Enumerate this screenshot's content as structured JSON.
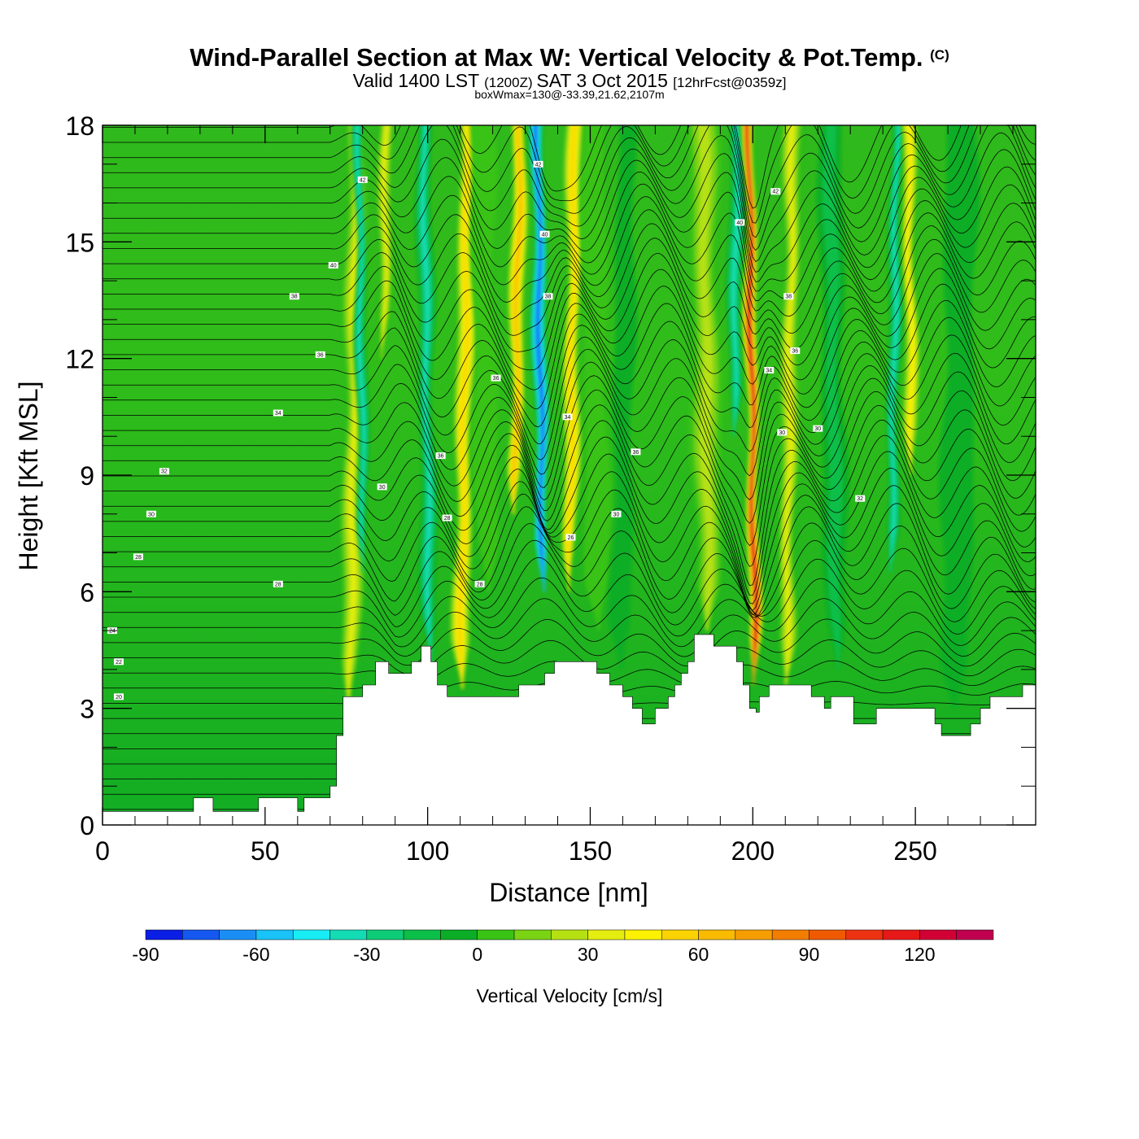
{
  "chart_data": {
    "type": "heatmap",
    "title": "Wind-Parallel Section at Max W: Vertical Velocity & Pot.Temp.",
    "title_suffix": "(C)",
    "subtitle": {
      "valid_prefix": "Valid 1400 LST",
      "utc": "(1200Z)",
      "date": "SAT 3 Oct 2015",
      "forecast": "[12hrFcst@0359z]"
    },
    "box_info": "boxWmax=130@-33.39,21.62,2107m",
    "xlabel": "Distance [nm]",
    "ylabel": "Height [Kft MSL]",
    "xlim": [
      0,
      287
    ],
    "ylim": [
      0,
      18
    ],
    "x_ticks": [
      0,
      50,
      100,
      150,
      200,
      250
    ],
    "y_ticks": [
      0,
      3,
      6,
      9,
      12,
      15,
      18
    ],
    "colorbar": {
      "label": "Vertical Velocity [cm/s]",
      "levels": [
        -90,
        -80,
        -70,
        -60,
        -50,
        -40,
        -30,
        -20,
        -10,
        0,
        10,
        20,
        30,
        40,
        50,
        60,
        70,
        80,
        90,
        100,
        110,
        120,
        130,
        140
      ],
      "tick_values": [
        -90,
        -60,
        -30,
        0,
        30,
        60,
        90,
        120
      ],
      "colors": [
        "#0a1ee6",
        "#1458f0",
        "#1a8ef5",
        "#19c2f7",
        "#18ecf5",
        "#13dcb5",
        "#0dcc78",
        "#0bbf48",
        "#0aad25",
        "#39c315",
        "#7ad313",
        "#b5e112",
        "#e4ed0f",
        "#fcf100",
        "#fbd300",
        "#f9ba00",
        "#f69e00",
        "#f37d00",
        "#ef5a00",
        "#ec3210",
        "#e61818",
        "#d10035",
        "#c1004f"
      ]
    },
    "terrain_kft": [
      [
        0,
        0.35
      ],
      [
        28,
        0.35
      ],
      [
        28,
        0.7
      ],
      [
        34,
        0.7
      ],
      [
        34,
        0.35
      ],
      [
        48,
        0.35
      ],
      [
        48,
        0.7
      ],
      [
        60,
        0.7
      ],
      [
        60,
        0.35
      ],
      [
        62,
        0.35
      ],
      [
        62,
        0.7
      ],
      [
        70,
        0.7
      ],
      [
        70,
        1.0
      ],
      [
        72,
        1.0
      ],
      [
        72,
        2.3
      ],
      [
        74,
        2.3
      ],
      [
        74,
        3.3
      ],
      [
        80,
        3.3
      ],
      [
        80,
        3.6
      ],
      [
        84,
        3.6
      ],
      [
        84,
        4.2
      ],
      [
        88,
        4.2
      ],
      [
        88,
        3.9
      ],
      [
        95,
        3.9
      ],
      [
        95,
        4.2
      ],
      [
        98,
        4.2
      ],
      [
        98,
        4.6
      ],
      [
        101,
        4.6
      ],
      [
        101,
        4.2
      ],
      [
        103,
        4.2
      ],
      [
        103,
        3.6
      ],
      [
        106,
        3.6
      ],
      [
        106,
        3.3
      ],
      [
        128,
        3.3
      ],
      [
        128,
        3.6
      ],
      [
        136,
        3.6
      ],
      [
        136,
        3.9
      ],
      [
        139,
        3.9
      ],
      [
        139,
        4.2
      ],
      [
        152,
        4.2
      ],
      [
        152,
        3.9
      ],
      [
        156,
        3.9
      ],
      [
        156,
        3.6
      ],
      [
        160,
        3.6
      ],
      [
        160,
        3.3
      ],
      [
        163,
        3.3
      ],
      [
        163,
        3.0
      ],
      [
        166,
        3.0
      ],
      [
        166,
        2.6
      ],
      [
        170,
        2.6
      ],
      [
        170,
        3.0
      ],
      [
        174,
        3.0
      ],
      [
        174,
        3.3
      ],
      [
        176,
        3.3
      ],
      [
        176,
        3.6
      ],
      [
        178,
        3.6
      ],
      [
        178,
        3.9
      ],
      [
        180,
        3.9
      ],
      [
        180,
        4.2
      ],
      [
        182,
        4.2
      ],
      [
        182,
        4.9
      ],
      [
        188,
        4.9
      ],
      [
        188,
        4.6
      ],
      [
        195,
        4.6
      ],
      [
        195,
        4.2
      ],
      [
        197,
        4.2
      ],
      [
        197,
        3.6
      ],
      [
        199,
        3.6
      ],
      [
        199,
        3.0
      ],
      [
        201,
        3.0
      ],
      [
        201,
        2.9
      ],
      [
        202,
        2.9
      ],
      [
        202,
        3.3
      ],
      [
        205,
        3.3
      ],
      [
        205,
        3.6
      ],
      [
        218,
        3.6
      ],
      [
        218,
        3.3
      ],
      [
        222,
        3.3
      ],
      [
        222,
        3.0
      ],
      [
        224,
        3.0
      ],
      [
        224,
        3.3
      ],
      [
        231,
        3.3
      ],
      [
        231,
        2.6
      ],
      [
        238,
        2.6
      ],
      [
        238,
        3.0
      ],
      [
        256,
        3.0
      ],
      [
        256,
        2.6
      ],
      [
        258,
        2.6
      ],
      [
        258,
        2.3
      ],
      [
        267,
        2.3
      ],
      [
        267,
        2.6
      ],
      [
        270,
        2.6
      ],
      [
        270,
        3.0
      ],
      [
        273,
        3.0
      ],
      [
        273,
        3.3
      ],
      [
        283,
        3.3
      ],
      [
        283,
        3.6
      ],
      [
        287,
        3.6
      ]
    ],
    "features": [
      {
        "x": 77,
        "width": 4,
        "min_y": 3.0,
        "peak": 40
      },
      {
        "x": 80,
        "width": 2.2,
        "min_y": 6.5,
        "peak": -45
      },
      {
        "x": 86,
        "width": 2.5,
        "min_y": 12,
        "peak": 45
      },
      {
        "x": 100,
        "width": 3,
        "min_y": 4.2,
        "peak": -40
      },
      {
        "x": 111,
        "width": 3.5,
        "min_y": 3.5,
        "peak": 60
      },
      {
        "x": 118,
        "width": 6,
        "min_y": 6,
        "peak": 18
      },
      {
        "x": 127,
        "width": 3.0,
        "min_y": 8,
        "peak": 70
      },
      {
        "x": 135,
        "width": 2.8,
        "min_y": 6,
        "peak": -80
      },
      {
        "x": 144,
        "width": 3.2,
        "min_y": 6,
        "peak": 60
      },
      {
        "x": 152,
        "width": 6,
        "min_y": 5,
        "peak": 18
      },
      {
        "x": 160,
        "width": 5,
        "min_y": 4,
        "peak": -18
      },
      {
        "x": 186,
        "width": 6,
        "min_y": 5,
        "peak": 35
      },
      {
        "x": 194,
        "width": 3,
        "min_y": 10,
        "peak": -45
      },
      {
        "x": 200,
        "width": 2.2,
        "min_y": 3.6,
        "peak": 130
      },
      {
        "x": 211,
        "width": 3.5,
        "min_y": 3.6,
        "peak": 40
      },
      {
        "x": 225,
        "width": 5,
        "min_y": 4,
        "peak": -22
      },
      {
        "x": 243,
        "width": 2.5,
        "min_y": 6.5,
        "peak": -40
      },
      {
        "x": 249,
        "width": 2.8,
        "min_y": 9,
        "peak": 55
      },
      {
        "x": 263,
        "width": 8,
        "min_y": 3,
        "peak": -14
      }
    ],
    "contour_labels": [
      {
        "x": 80,
        "y": 16.6,
        "text": "42"
      },
      {
        "x": 71,
        "y": 14.4,
        "text": "40"
      },
      {
        "x": 59,
        "y": 13.6,
        "text": "38"
      },
      {
        "x": 67,
        "y": 12.1,
        "text": "36"
      },
      {
        "x": 54,
        "y": 10.6,
        "text": "34"
      },
      {
        "x": 19,
        "y": 9.1,
        "text": "32"
      },
      {
        "x": 15,
        "y": 8.0,
        "text": "30"
      },
      {
        "x": 11,
        "y": 6.9,
        "text": "28"
      },
      {
        "x": 54,
        "y": 6.2,
        "text": "28"
      },
      {
        "x": 3,
        "y": 5.0,
        "text": "24"
      },
      {
        "x": 5,
        "y": 4.2,
        "text": "22"
      },
      {
        "x": 5,
        "y": 3.3,
        "text": "20"
      },
      {
        "x": 134,
        "y": 17.0,
        "text": "42"
      },
      {
        "x": 136,
        "y": 15.2,
        "text": "40"
      },
      {
        "x": 137,
        "y": 13.6,
        "text": "38"
      },
      {
        "x": 121,
        "y": 11.5,
        "text": "36"
      },
      {
        "x": 143,
        "y": 10.5,
        "text": "34"
      },
      {
        "x": 104,
        "y": 9.5,
        "text": "36"
      },
      {
        "x": 86,
        "y": 8.7,
        "text": "30"
      },
      {
        "x": 106,
        "y": 7.9,
        "text": "28"
      },
      {
        "x": 116,
        "y": 6.2,
        "text": "28"
      },
      {
        "x": 144,
        "y": 7.4,
        "text": "26"
      },
      {
        "x": 164,
        "y": 9.6,
        "text": "36"
      },
      {
        "x": 158,
        "y": 8.0,
        "text": "30"
      },
      {
        "x": 196,
        "y": 15.5,
        "text": "40"
      },
      {
        "x": 207,
        "y": 16.3,
        "text": "42"
      },
      {
        "x": 211,
        "y": 13.6,
        "text": "38"
      },
      {
        "x": 213,
        "y": 12.2,
        "text": "36"
      },
      {
        "x": 205,
        "y": 11.7,
        "text": "34"
      },
      {
        "x": 209,
        "y": 10.1,
        "text": "30"
      },
      {
        "x": 220,
        "y": 10.2,
        "text": "30"
      },
      {
        "x": 233,
        "y": 8.4,
        "text": "32"
      }
    ]
  }
}
